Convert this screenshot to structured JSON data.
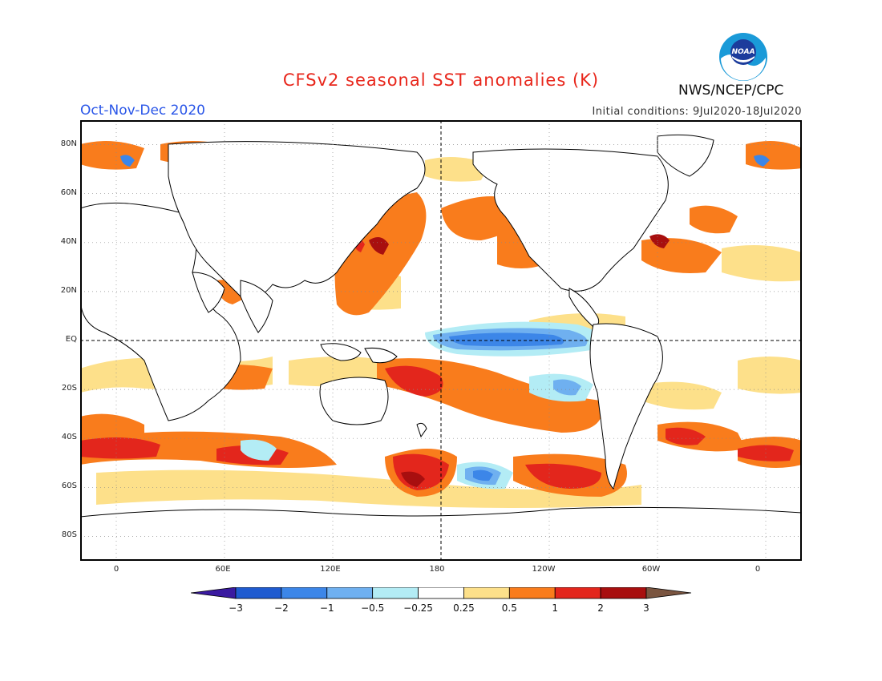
{
  "header": {
    "title": "CFSv2 seasonal SST anomalies (K)",
    "period": "Oct-Nov-Dec 2020",
    "initial_conditions": "Initial conditions: 9Jul2020-18Jul2020",
    "agency": "NWS/NCEP/CPC",
    "logo_text": "NOAA"
  },
  "axes": {
    "lat_labels": [
      "80N",
      "60N",
      "40N",
      "20N",
      "EQ",
      "20S",
      "40S",
      "60S",
      "80S"
    ],
    "lat_values": [
      80,
      60,
      40,
      20,
      0,
      -20,
      -40,
      -60,
      -80
    ],
    "lon_labels": [
      "0",
      "60E",
      "120E",
      "180",
      "120W",
      "60W",
      "0"
    ],
    "lon_values": [
      0,
      60,
      120,
      180,
      240,
      300,
      360
    ],
    "lon_range": [
      -20,
      380
    ],
    "lat_range": [
      -90,
      90
    ]
  },
  "colorbar": {
    "tick_labels": [
      "-3",
      "-2",
      "-1",
      "-0.5",
      "-0.25",
      "0.25",
      "0.5",
      "1",
      "2",
      "3"
    ],
    "colors": [
      "#3a1aa0",
      "#1f5bd0",
      "#3c86e8",
      "#6fb0f0",
      "#b3ecf5",
      "#ffffff",
      "#fde08a",
      "#f97c1c",
      "#e3261c",
      "#a80f0f",
      "#7a5540"
    ]
  },
  "anomaly_colors": {
    "strong_cool": "#3c86e8",
    "cool": "#6fb0f0",
    "slight_cool": "#b3ecf5",
    "slight_warm": "#fde08a",
    "warm": "#f97c1c",
    "strong_warm": "#e3261c",
    "very_warm": "#a80f0f"
  }
}
